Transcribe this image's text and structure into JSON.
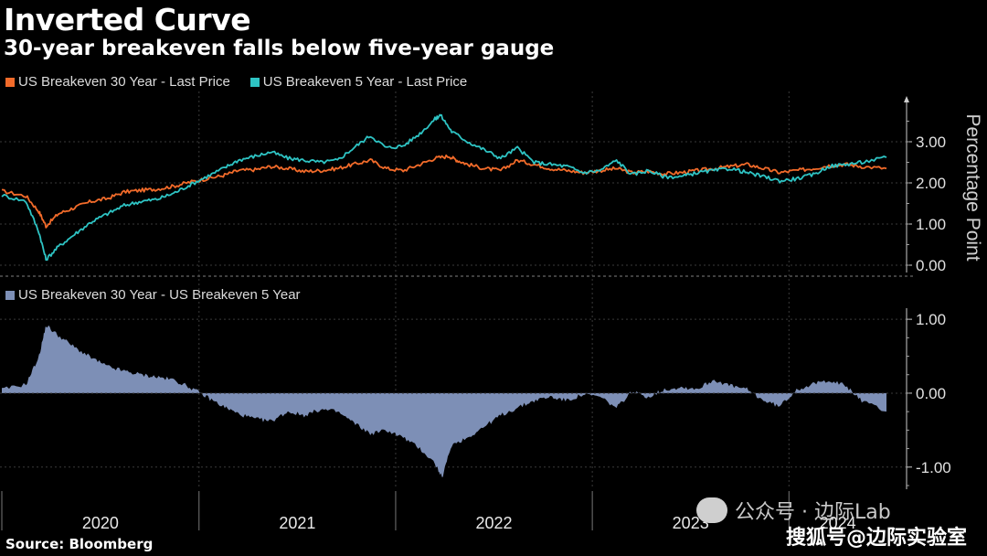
{
  "chart_data": [
    {
      "type": "line",
      "title": "Inverted Curve",
      "subtitle": "30-year breakeven falls below five-year gauge",
      "ylabel": "Percentage Point",
      "ylim": [
        0,
        4
      ],
      "y_ticks": [
        "0.00",
        "1.00",
        "2.00",
        "3.00"
      ],
      "x_tick_labels": [
        "2020",
        "2021",
        "2022",
        "2023",
        "2024"
      ],
      "x_range": [
        "2020-01-01",
        "2024-06-30"
      ],
      "grid": true,
      "legend_position": "top-left",
      "series": [
        {
          "name": "US Breakeven 30 Year - Last Price",
          "color": "#f26b2a",
          "points": [
            [
              "2020-01-01",
              1.8
            ],
            [
              "2020-02-15",
              1.68
            ],
            [
              "2020-03-10",
              1.3
            ],
            [
              "2020-03-23",
              0.95
            ],
            [
              "2020-04-15",
              1.25
            ],
            [
              "2020-05-15",
              1.4
            ],
            [
              "2020-06-15",
              1.55
            ],
            [
              "2020-07-15",
              1.62
            ],
            [
              "2020-08-15",
              1.78
            ],
            [
              "2020-09-15",
              1.82
            ],
            [
              "2020-10-15",
              1.85
            ],
            [
              "2020-11-15",
              1.92
            ],
            [
              "2020-12-15",
              2.02
            ],
            [
              "2021-01-15",
              2.1
            ],
            [
              "2021-02-15",
              2.18
            ],
            [
              "2021-03-15",
              2.3
            ],
            [
              "2021-04-15",
              2.32
            ],
            [
              "2021-05-15",
              2.4
            ],
            [
              "2021-06-15",
              2.35
            ],
            [
              "2021-07-15",
              2.28
            ],
            [
              "2021-08-15",
              2.3
            ],
            [
              "2021-09-15",
              2.35
            ],
            [
              "2021-10-15",
              2.45
            ],
            [
              "2021-11-15",
              2.55
            ],
            [
              "2021-12-15",
              2.35
            ],
            [
              "2022-01-15",
              2.3
            ],
            [
              "2022-02-15",
              2.45
            ],
            [
              "2022-03-15",
              2.6
            ],
            [
              "2022-04-10",
              2.65
            ],
            [
              "2022-04-25",
              2.55
            ],
            [
              "2022-05-15",
              2.45
            ],
            [
              "2022-06-15",
              2.35
            ],
            [
              "2022-07-15",
              2.3
            ],
            [
              "2022-08-15",
              2.55
            ],
            [
              "2022-09-15",
              2.45
            ],
            [
              "2022-10-15",
              2.35
            ],
            [
              "2022-11-15",
              2.3
            ],
            [
              "2022-12-15",
              2.25
            ],
            [
              "2023-01-15",
              2.3
            ],
            [
              "2023-02-15",
              2.35
            ],
            [
              "2023-03-15",
              2.25
            ],
            [
              "2023-04-15",
              2.28
            ],
            [
              "2023-05-15",
              2.22
            ],
            [
              "2023-06-15",
              2.25
            ],
            [
              "2023-07-15",
              2.3
            ],
            [
              "2023-08-15",
              2.35
            ],
            [
              "2023-09-15",
              2.4
            ],
            [
              "2023-10-15",
              2.45
            ],
            [
              "2023-11-15",
              2.35
            ],
            [
              "2023-12-15",
              2.25
            ],
            [
              "2024-01-15",
              2.3
            ],
            [
              "2024-02-15",
              2.35
            ],
            [
              "2024-03-15",
              2.42
            ],
            [
              "2024-04-15",
              2.45
            ],
            [
              "2024-05-15",
              2.4
            ],
            [
              "2024-06-30",
              2.35
            ]
          ]
        },
        {
          "name": "US Breakeven 5 Year - Last Price",
          "color": "#2ec4c4",
          "points": [
            [
              "2020-01-01",
              1.7
            ],
            [
              "2020-02-15",
              1.55
            ],
            [
              "2020-03-10",
              0.8
            ],
            [
              "2020-03-23",
              0.14
            ],
            [
              "2020-04-15",
              0.45
            ],
            [
              "2020-05-15",
              0.75
            ],
            [
              "2020-06-15",
              1.05
            ],
            [
              "2020-07-15",
              1.25
            ],
            [
              "2020-08-15",
              1.45
            ],
            [
              "2020-09-15",
              1.55
            ],
            [
              "2020-10-15",
              1.6
            ],
            [
              "2020-11-15",
              1.75
            ],
            [
              "2020-12-15",
              1.95
            ],
            [
              "2021-01-15",
              2.15
            ],
            [
              "2021-02-15",
              2.35
            ],
            [
              "2021-03-15",
              2.55
            ],
            [
              "2021-04-15",
              2.65
            ],
            [
              "2021-05-15",
              2.75
            ],
            [
              "2021-06-15",
              2.6
            ],
            [
              "2021-07-15",
              2.55
            ],
            [
              "2021-08-15",
              2.5
            ],
            [
              "2021-09-15",
              2.55
            ],
            [
              "2021-10-15",
              2.85
            ],
            [
              "2021-11-15",
              3.15
            ],
            [
              "2021-12-15",
              2.85
            ],
            [
              "2022-01-15",
              2.9
            ],
            [
              "2022-02-15",
              3.2
            ],
            [
              "2022-03-15",
              3.55
            ],
            [
              "2022-03-25",
              3.65
            ],
            [
              "2022-04-15",
              3.25
            ],
            [
              "2022-05-15",
              3.0
            ],
            [
              "2022-06-15",
              2.8
            ],
            [
              "2022-07-15",
              2.6
            ],
            [
              "2022-08-15",
              2.85
            ],
            [
              "2022-09-15",
              2.5
            ],
            [
              "2022-10-15",
              2.45
            ],
            [
              "2022-11-15",
              2.4
            ],
            [
              "2022-12-15",
              2.25
            ],
            [
              "2023-01-15",
              2.3
            ],
            [
              "2023-02-15",
              2.55
            ],
            [
              "2023-03-15",
              2.2
            ],
            [
              "2023-04-15",
              2.3
            ],
            [
              "2023-05-15",
              2.15
            ],
            [
              "2023-06-15",
              2.15
            ],
            [
              "2023-07-15",
              2.25
            ],
            [
              "2023-08-15",
              2.3
            ],
            [
              "2023-09-15",
              2.35
            ],
            [
              "2023-10-15",
              2.25
            ],
            [
              "2023-11-15",
              2.15
            ],
            [
              "2023-12-15",
              2.05
            ],
            [
              "2024-01-15",
              2.1
            ],
            [
              "2024-02-15",
              2.2
            ],
            [
              "2024-03-15",
              2.4
            ],
            [
              "2024-04-15",
              2.45
            ],
            [
              "2024-05-15",
              2.5
            ],
            [
              "2024-06-30",
              2.62
            ]
          ]
        }
      ]
    },
    {
      "type": "area",
      "ylim": [
        -1.3,
        1.15
      ],
      "y_ticks": [
        "-1.00",
        "0.00",
        "1.00"
      ],
      "x_tick_labels": [
        "2020",
        "2021",
        "2022",
        "2023",
        "2024"
      ],
      "x_range": [
        "2020-01-01",
        "2024-06-30"
      ],
      "grid": true,
      "legend_position": "top-left",
      "series": [
        {
          "name": "US Breakeven 30 Year - US Breakeven 5 Year",
          "color": "#7d8fb6",
          "points": [
            [
              "2020-01-01",
              0.05
            ],
            [
              "2020-02-15",
              0.12
            ],
            [
              "2020-03-10",
              0.5
            ],
            [
              "2020-03-23",
              0.92
            ],
            [
              "2020-04-15",
              0.78
            ],
            [
              "2020-05-15",
              0.62
            ],
            [
              "2020-06-15",
              0.48
            ],
            [
              "2020-07-15",
              0.36
            ],
            [
              "2020-08-15",
              0.3
            ],
            [
              "2020-09-15",
              0.25
            ],
            [
              "2020-10-15",
              0.22
            ],
            [
              "2020-11-15",
              0.18
            ],
            [
              "2020-12-15",
              0.08
            ],
            [
              "2021-01-15",
              -0.05
            ],
            [
              "2021-02-15",
              -0.18
            ],
            [
              "2021-03-15",
              -0.28
            ],
            [
              "2021-04-15",
              -0.35
            ],
            [
              "2021-05-15",
              -0.38
            ],
            [
              "2021-06-15",
              -0.25
            ],
            [
              "2021-07-15",
              -0.3
            ],
            [
              "2021-08-15",
              -0.22
            ],
            [
              "2021-09-15",
              -0.25
            ],
            [
              "2021-10-15",
              -0.4
            ],
            [
              "2021-11-15",
              -0.55
            ],
            [
              "2021-12-15",
              -0.5
            ],
            [
              "2022-01-15",
              -0.6
            ],
            [
              "2022-02-15",
              -0.75
            ],
            [
              "2022-03-15",
              -0.95
            ],
            [
              "2022-03-28",
              -1.15
            ],
            [
              "2022-04-15",
              -0.7
            ],
            [
              "2022-05-15",
              -0.6
            ],
            [
              "2022-06-15",
              -0.45
            ],
            [
              "2022-07-15",
              -0.3
            ],
            [
              "2022-08-15",
              -0.2
            ],
            [
              "2022-09-15",
              -0.1
            ],
            [
              "2022-10-15",
              -0.05
            ],
            [
              "2022-11-15",
              -0.1
            ],
            [
              "2022-12-15",
              -0.02
            ],
            [
              "2023-01-15",
              -0.05
            ],
            [
              "2023-02-15",
              -0.2
            ],
            [
              "2023-03-15",
              0.02
            ],
            [
              "2023-04-15",
              -0.05
            ],
            [
              "2023-05-15",
              0.05
            ],
            [
              "2023-06-15",
              0.08
            ],
            [
              "2023-07-15",
              0.06
            ],
            [
              "2023-08-15",
              0.18
            ],
            [
              "2023-09-15",
              0.1
            ],
            [
              "2023-10-15",
              0.05
            ],
            [
              "2023-11-15",
              -0.1
            ],
            [
              "2023-12-15",
              -0.18
            ],
            [
              "2024-01-15",
              0.05
            ],
            [
              "2024-02-15",
              0.12
            ],
            [
              "2024-03-15",
              0.18
            ],
            [
              "2024-04-15",
              0.1
            ],
            [
              "2024-05-15",
              -0.1
            ],
            [
              "2024-06-30",
              -0.25
            ]
          ]
        }
      ]
    }
  ],
  "source_label": "Source: Bloomberg",
  "watermark_primary": "公众号 · 边际Lab",
  "watermark_secondary": "搜狐号@边际实验室",
  "brand_text": "Bloomberg"
}
